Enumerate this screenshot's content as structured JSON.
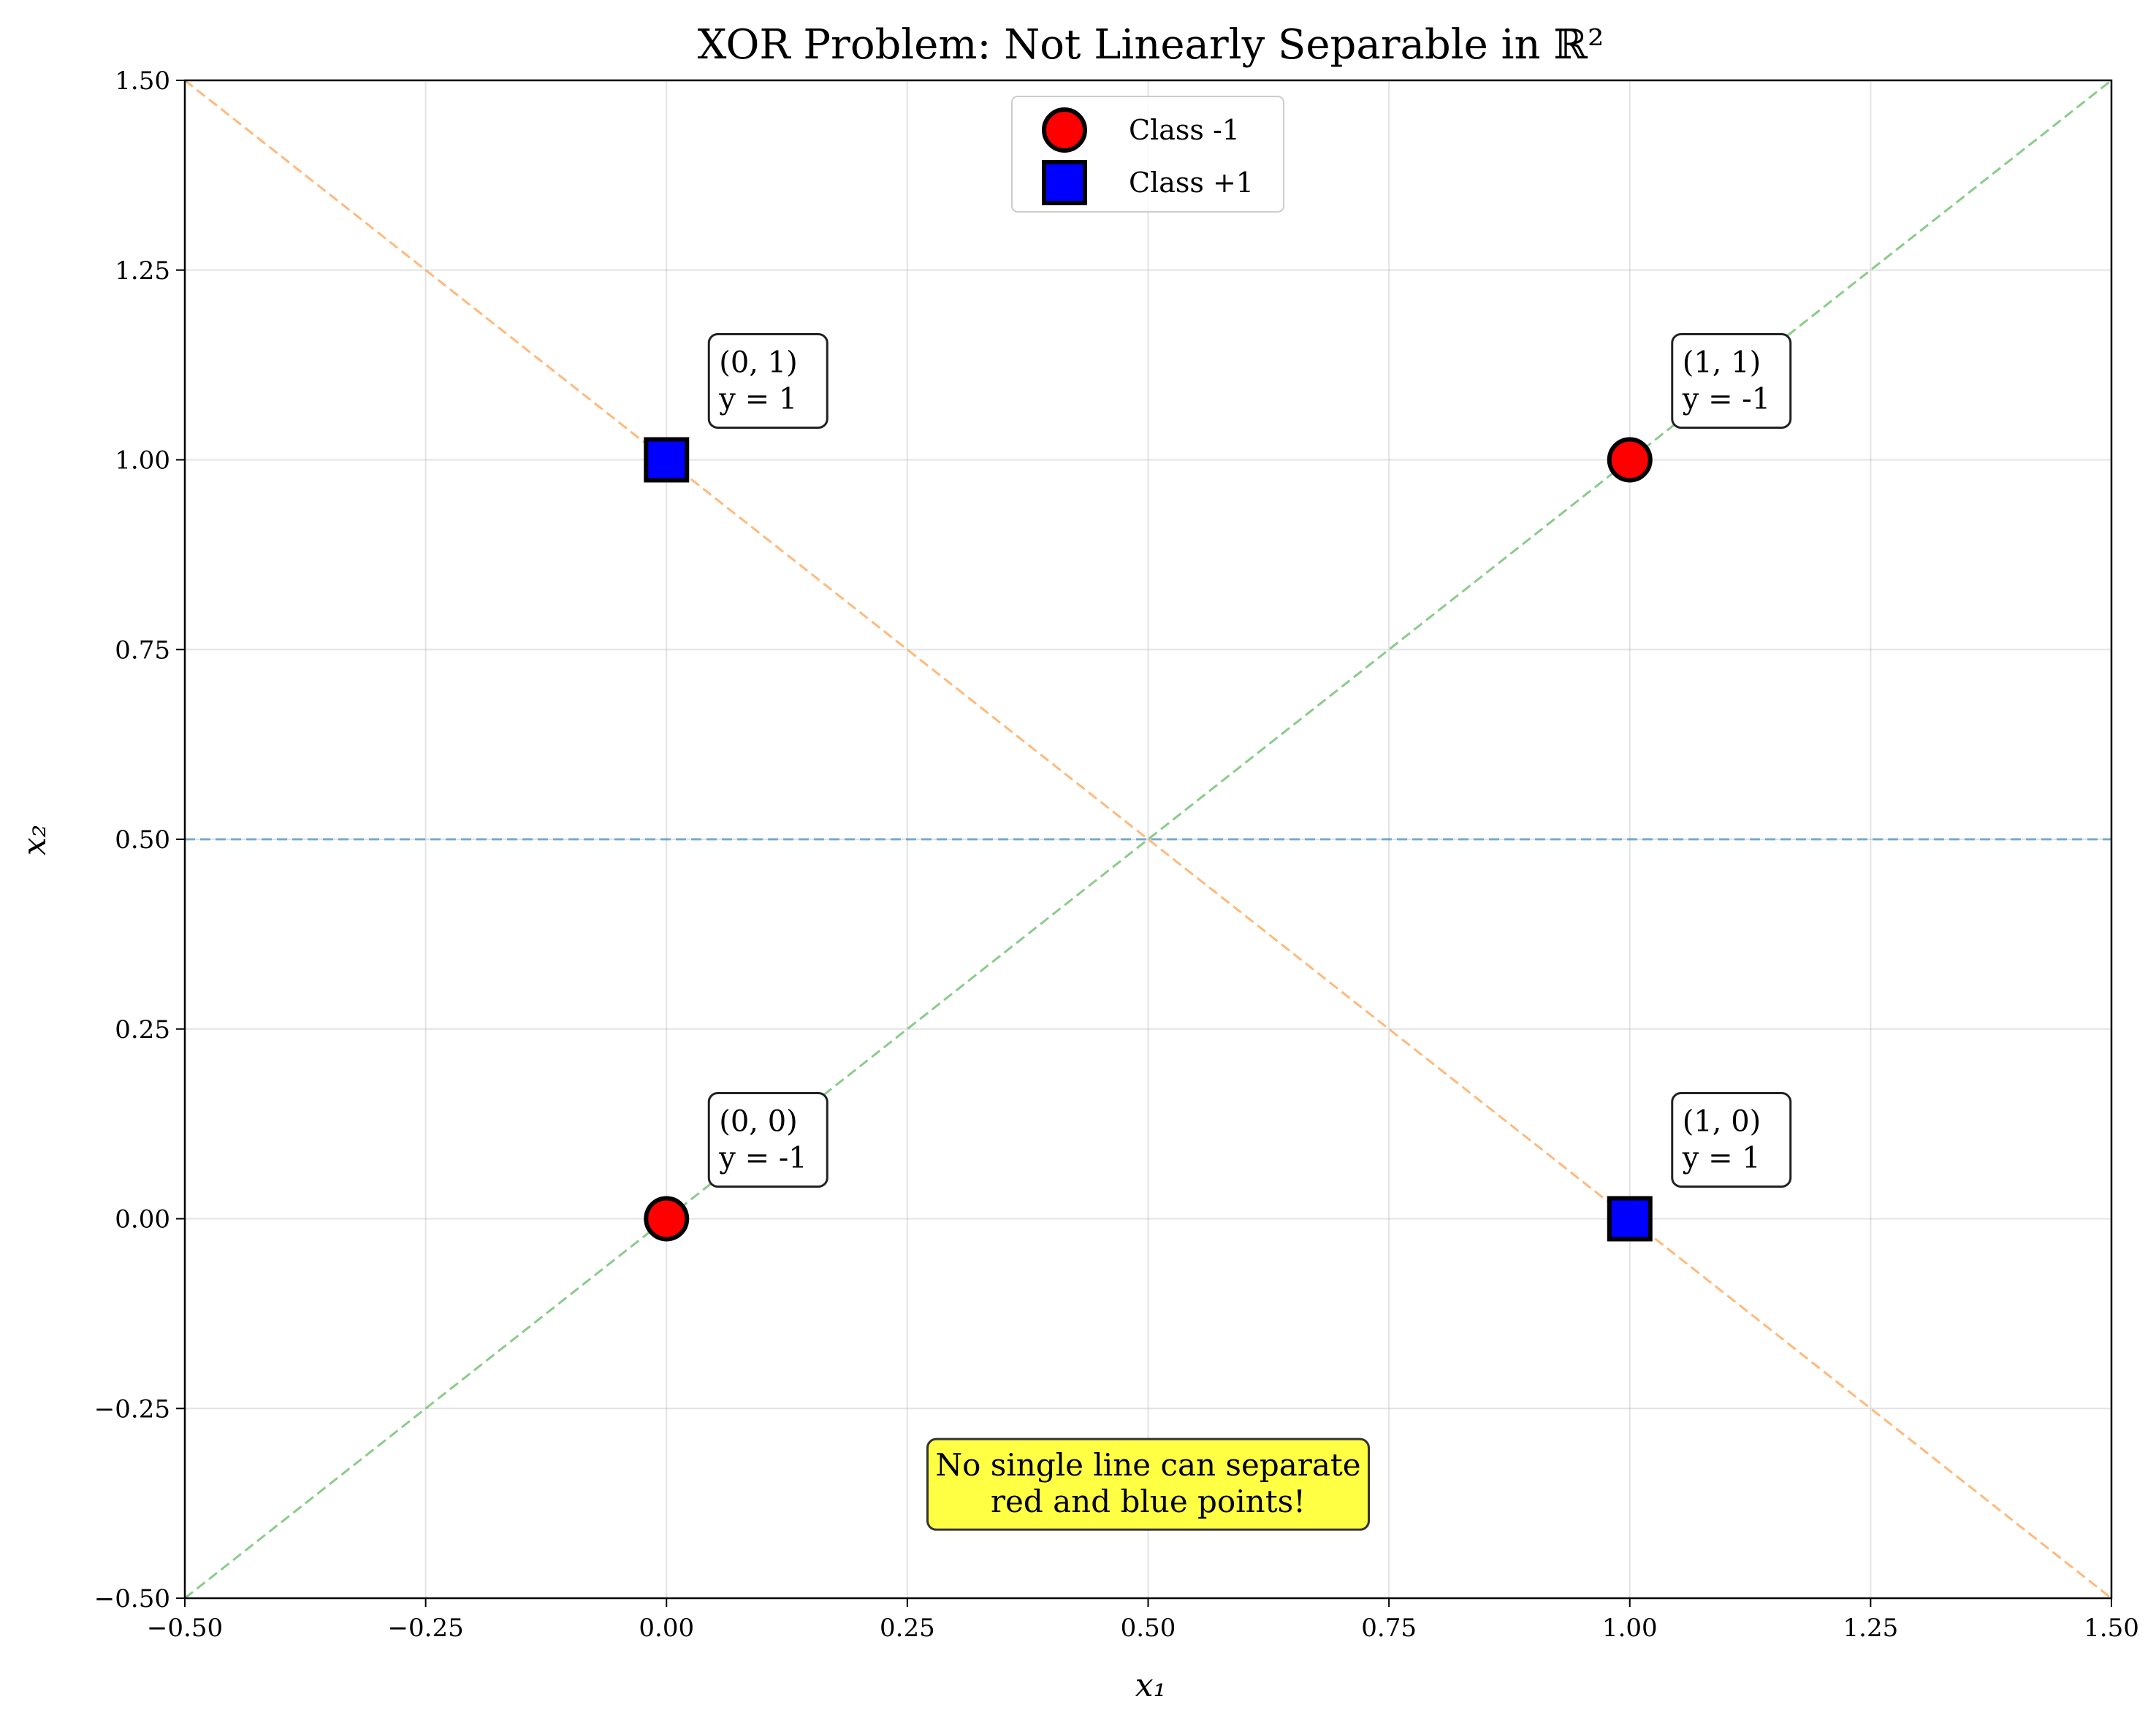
{
  "chart_data": {
    "type": "scatter",
    "title": "XOR Problem: Not Linearly Separable in ℝ²",
    "xlabel": "x₁",
    "ylabel": "x₂",
    "xlim": [
      -0.5,
      1.5
    ],
    "ylim": [
      -0.5,
      1.5
    ],
    "x_ticks": [
      -0.5,
      -0.25,
      0.0,
      0.25,
      0.5,
      0.75,
      1.0,
      1.25,
      1.5
    ],
    "y_ticks": [
      -0.5,
      -0.25,
      0.0,
      0.25,
      0.5,
      0.75,
      1.0,
      1.25,
      1.5
    ],
    "x_tick_labels": [
      "−0.50",
      "−0.25",
      "0.00",
      "0.25",
      "0.50",
      "0.75",
      "1.00",
      "1.25",
      "1.50"
    ],
    "y_tick_labels": [
      "−0.50",
      "−0.25",
      "0.00",
      "0.25",
      "0.50",
      "0.75",
      "1.00",
      "1.25",
      "1.50"
    ],
    "grid": true,
    "legend_position": "top-center",
    "series": [
      {
        "name": "Class -1",
        "marker": "circle",
        "color": "#ff0000",
        "points": [
          {
            "x": 0,
            "y": 0
          },
          {
            "x": 1,
            "y": 1
          }
        ]
      },
      {
        "name": "Class +1",
        "marker": "square",
        "color": "#0000ff",
        "points": [
          {
            "x": 0,
            "y": 1
          },
          {
            "x": 1,
            "y": 0
          }
        ]
      }
    ],
    "reference_lines": [
      {
        "kind": "horizontal",
        "y": 0.5,
        "color": "#1f77b4",
        "style": "dashed"
      },
      {
        "kind": "line",
        "from": [
          -0.5,
          -0.5
        ],
        "to": [
          1.5,
          1.5
        ],
        "color": "#2ca02c",
        "style": "dashed"
      },
      {
        "kind": "line",
        "from": [
          -0.5,
          1.5
        ],
        "to": [
          1.5,
          -0.5
        ],
        "color": "#ff7f0e",
        "style": "dashed"
      }
    ],
    "annotations": [
      {
        "x": 0,
        "y": 0,
        "lines": [
          "(0, 0)",
          "y = -1"
        ]
      },
      {
        "x": 0,
        "y": 1,
        "lines": [
          "(0, 1)",
          "y = 1"
        ]
      },
      {
        "x": 1,
        "y": 0,
        "lines": [
          "(1, 0)",
          "y = 1"
        ]
      },
      {
        "x": 1,
        "y": 1,
        "lines": [
          "(1, 1)",
          "y = -1"
        ]
      }
    ],
    "note": {
      "lines": [
        "No single line can separate",
        "red and blue points!"
      ],
      "background": "#ffff44"
    }
  }
}
